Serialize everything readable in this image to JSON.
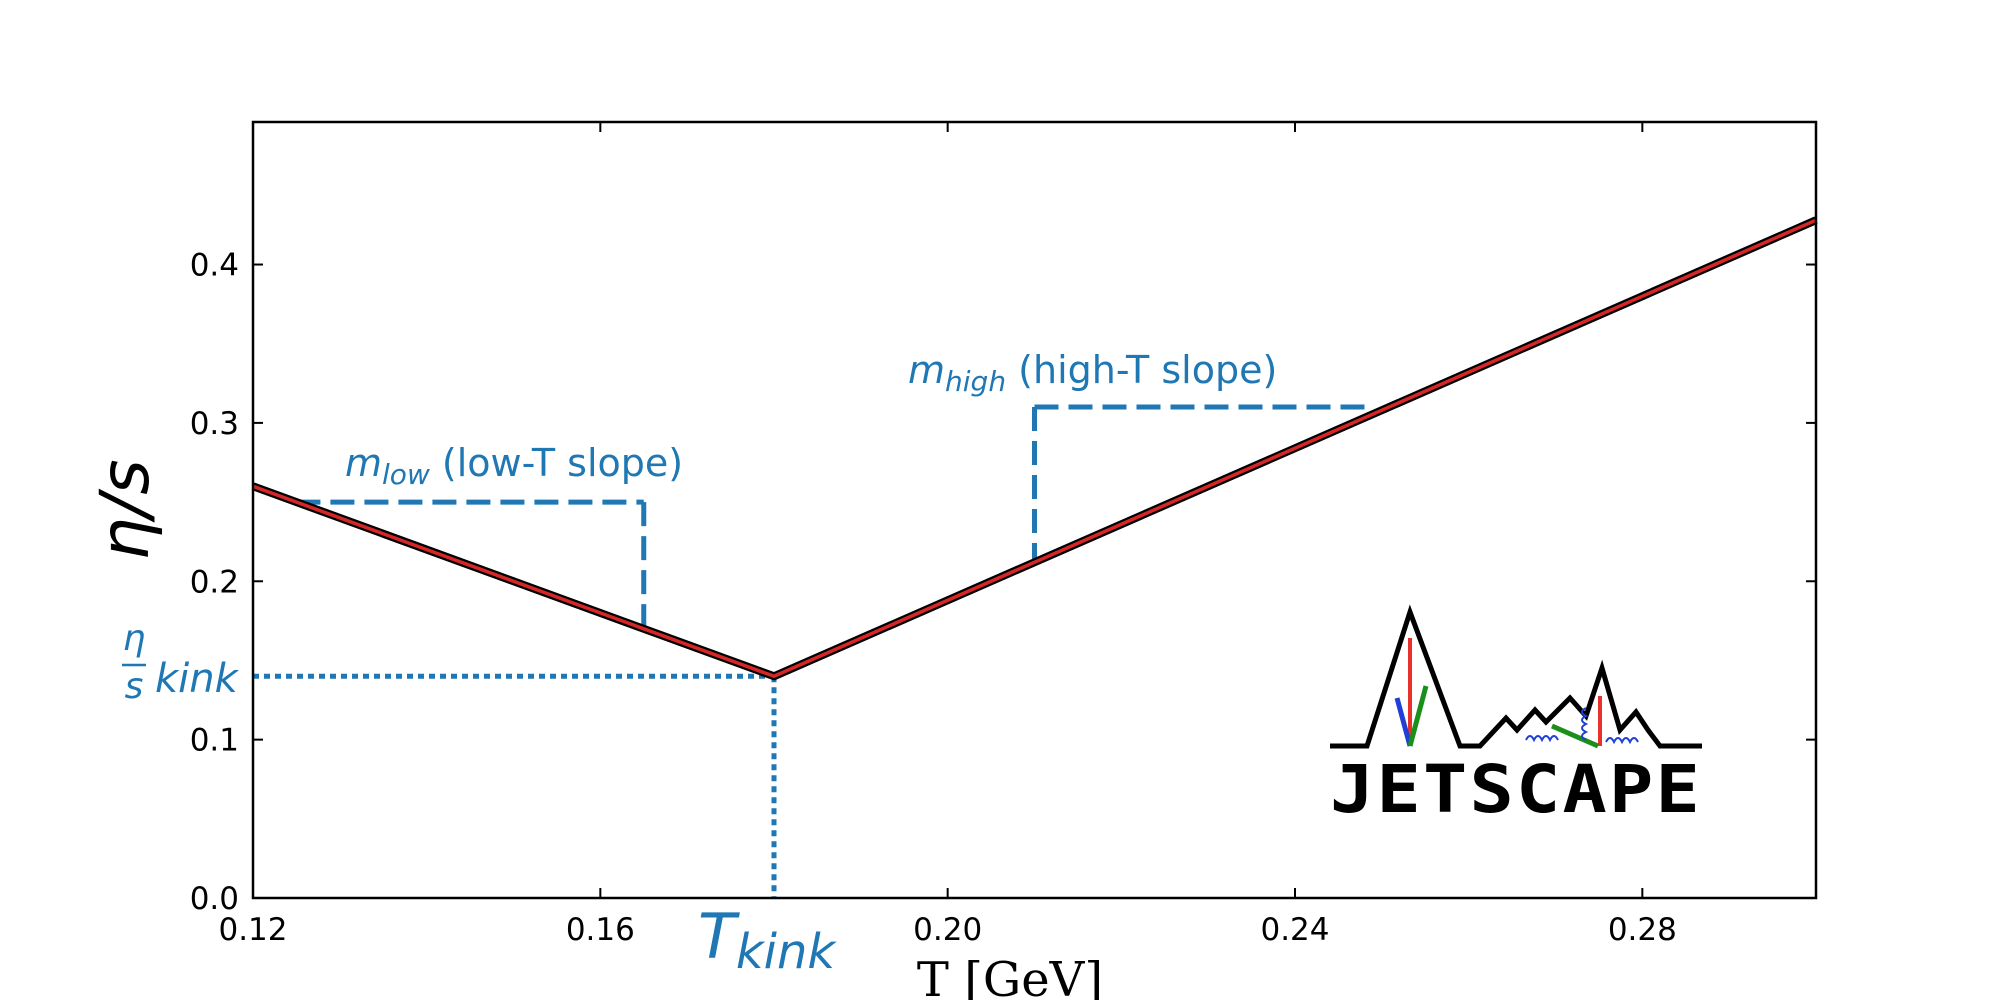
{
  "chart_data": {
    "type": "line",
    "title": "",
    "xlabel": "T [GeV]",
    "ylabel": "η/s",
    "xlim": [
      0.12,
      0.3
    ],
    "ylim": [
      0.0,
      0.49
    ],
    "x_ticks": [
      0.12,
      0.16,
      0.2,
      0.24,
      0.28
    ],
    "x_tick_labels": [
      "0.12",
      "0.16",
      "0.20",
      "0.24",
      "0.28"
    ],
    "y_ticks": [
      0.0,
      0.1,
      0.2,
      0.3,
      0.4
    ],
    "y_tick_labels": [
      "0.0",
      "0.1",
      "0.2",
      "0.3",
      "0.4"
    ],
    "grid": false,
    "series": [
      {
        "name": "η/s(T)",
        "color": "#d62728",
        "outline_color": "#000000",
        "x": [
          0.12,
          0.18,
          0.3
        ],
        "y": [
          0.26,
          0.14,
          0.428
        ]
      }
    ],
    "annotations": {
      "color": "#1f77b4",
      "low_slope": {
        "symbol": "m",
        "subscript": "low",
        "text": " (low-T slope)",
        "x_from": 0.125,
        "x_to": 0.165,
        "y_level": 0.25,
        "y_line_at_x_to": 0.17
      },
      "high_slope": {
        "symbol": "m",
        "subscript": "high",
        "text": " (high-T slope)",
        "x_from": 0.21,
        "x_to": 0.249,
        "y_level": 0.31,
        "y_line_at_x_from": 0.212
      },
      "kink_value": {
        "numerator": "η",
        "denominator": "s",
        "text": "kink",
        "y": 0.14
      },
      "kink_temperature": {
        "symbol": "T",
        "subscript": "kink",
        "x": 0.18
      }
    }
  },
  "logo": {
    "text": "JETSCAPE"
  }
}
